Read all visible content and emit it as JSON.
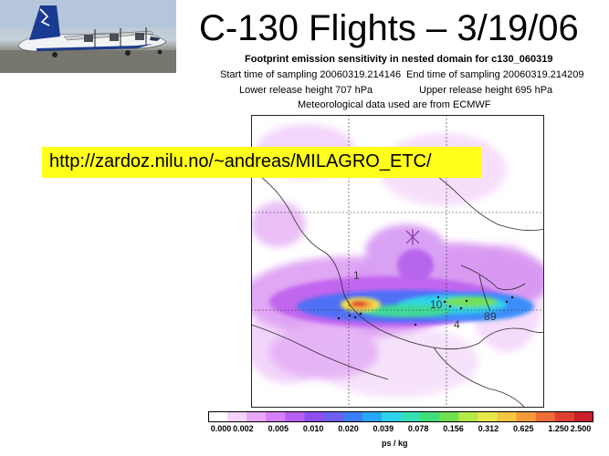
{
  "slide": {
    "title": "C-130 Flights – 3/19/06",
    "url": "http://zardoz.nilu.no/~andreas/MILAGRO_ETC/"
  },
  "figure": {
    "heading": "Footprint emission sensitivity in nested domain for c130_060319",
    "start_time": "Start time of sampling 20060319.214146",
    "end_time": "End time of sampling 20060319.214209",
    "lower_height": "Lower release height  707 hPa",
    "upper_height": "Upper release height  695 hPa",
    "met_data": "Meteorological data used are from ECMWF",
    "map_labels": [
      "1",
      "10",
      "4",
      "8",
      "9"
    ],
    "colorbar_ticks": [
      "0.000",
      "0.002",
      "0.005",
      "0.010",
      "0.020",
      "0.039",
      "0.078",
      "0.156",
      "0.312",
      "0.625",
      "1.250",
      "2.500"
    ],
    "colorbar_unit": "ps / kg",
    "colorbar_colors": [
      "#ffffff",
      "#f3d4fb",
      "#e7a6f7",
      "#d77ff5",
      "#b95ff2",
      "#8f4ff0",
      "#6f5ff5",
      "#3d7ff9",
      "#29a7f6",
      "#2cd2e9",
      "#35e0b6",
      "#3fe07a",
      "#6fe04e",
      "#b5e84a",
      "#e8e84a",
      "#f5c640",
      "#f59a3b",
      "#f06c36",
      "#e04030",
      "#c81f2c"
    ]
  },
  "photo": {
    "plane_tail_text": ""
  }
}
